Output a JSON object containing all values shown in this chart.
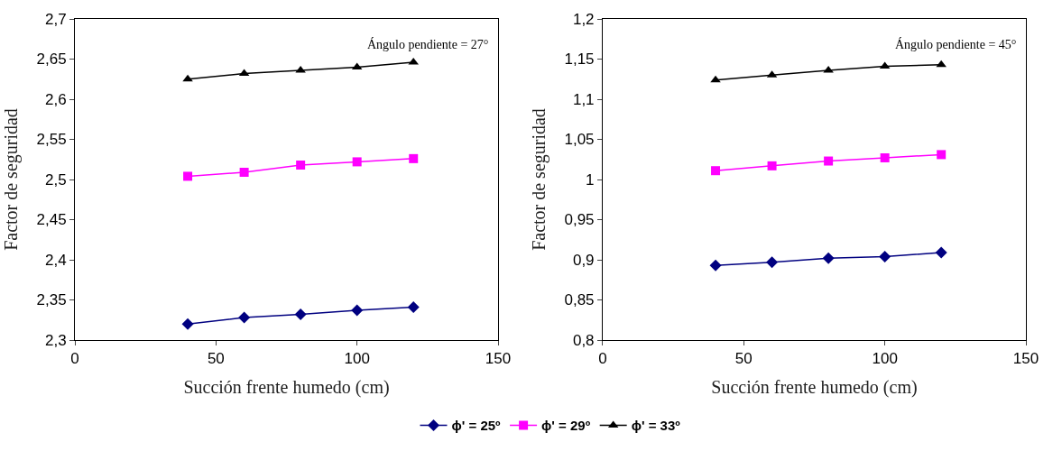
{
  "chart_data": [
    {
      "type": "line",
      "xlabel": "Succión frente humedo (cm)",
      "ylabel": "Factor de seguridad",
      "annotations": [
        "Ángulo pendiente = 27°"
      ],
      "x": [
        40,
        60,
        80,
        100,
        120
      ],
      "xlim": [
        0,
        150
      ],
      "xticks": [
        0,
        50,
        100,
        150
      ],
      "ylim": [
        2.3,
        2.7
      ],
      "yticks": [
        {
          "value": 2.3,
          "label": "2,3"
        },
        {
          "value": 2.35,
          "label": "2,35"
        },
        {
          "value": 2.4,
          "label": "2,4"
        },
        {
          "value": 2.45,
          "label": "2,45"
        },
        {
          "value": 2.5,
          "label": "2,5"
        },
        {
          "value": 2.55,
          "label": "2,55"
        },
        {
          "value": 2.6,
          "label": "2,6"
        },
        {
          "value": 2.65,
          "label": "2,65"
        },
        {
          "value": 2.7,
          "label": "2,7"
        }
      ],
      "legend": "bottom",
      "series": [
        {
          "name": "ϕ' = 25º",
          "color": "#000080",
          "marker": "diamond",
          "values": [
            2.32,
            2.328,
            2.332,
            2.337,
            2.341
          ]
        },
        {
          "name": "ϕ' = 29º",
          "color": "#ff00ff",
          "marker": "square",
          "values": [
            2.504,
            2.509,
            2.518,
            2.522,
            2.526
          ]
        },
        {
          "name": "ϕ' = 33º",
          "color": "#000000",
          "marker": "triangle",
          "values": [
            2.625,
            2.632,
            2.636,
            2.64,
            2.646
          ]
        }
      ]
    },
    {
      "type": "line",
      "xlabel": "Succión frente humedo (cm)",
      "ylabel": "Factor de seguridad",
      "annotations": [
        "Ángulo pendiente = 45°"
      ],
      "x": [
        40,
        60,
        80,
        100,
        120
      ],
      "xlim": [
        0,
        150
      ],
      "xticks": [
        0,
        50,
        100,
        150
      ],
      "ylim": [
        0.8,
        1.2
      ],
      "yticks": [
        {
          "value": 0.8,
          "label": "0,8"
        },
        {
          "value": 0.85,
          "label": "0,85"
        },
        {
          "value": 0.9,
          "label": "0,9"
        },
        {
          "value": 0.95,
          "label": "0,95"
        },
        {
          "value": 1.0,
          "label": "1"
        },
        {
          "value": 1.05,
          "label": "1,05"
        },
        {
          "value": 1.1,
          "label": "1,1"
        },
        {
          "value": 1.15,
          "label": "1,15"
        },
        {
          "value": 1.2,
          "label": "1,2"
        }
      ],
      "series": [
        {
          "color": "#000080",
          "marker": "diamond",
          "values": [
            0.893,
            0.897,
            0.902,
            0.904,
            0.909
          ]
        },
        {
          "color": "#ff00ff",
          "marker": "square",
          "values": [
            1.011,
            1.017,
            1.023,
            1.027,
            1.031
          ]
        },
        {
          "color": "#000000",
          "marker": "triangle",
          "values": [
            1.124,
            1.13,
            1.136,
            1.141,
            1.143
          ]
        }
      ]
    }
  ]
}
